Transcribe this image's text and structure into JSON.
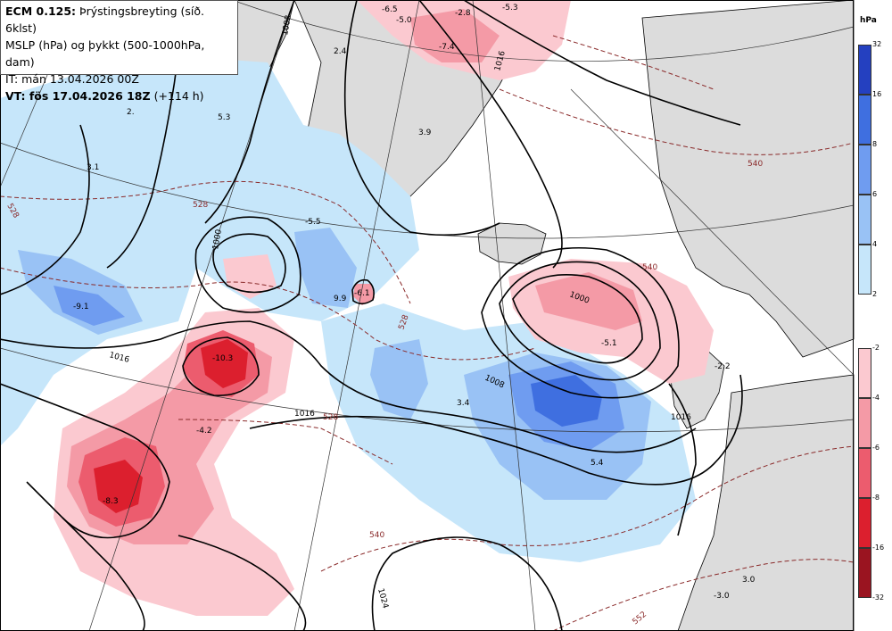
{
  "header": {
    "model": "ECM 0.125:",
    "product": "Þrýstingsbreyting (síð. 6klst)",
    "line2": "MSLP (hPa) og þykkt (500-1000hPa, dam)",
    "line3": "IT: mán 13.04.2026 00Z",
    "vt_label": "VT: fös 17.04.2026 18Z",
    "vt_lead": "(+114 h)"
  },
  "legend": {
    "unit": "hPa",
    "positive": [
      "32",
      "16",
      "8",
      "6",
      "4",
      "2"
    ],
    "negative": [
      "-2",
      "-4",
      "-6",
      "-8",
      "-16",
      "-32"
    ],
    "positive_colors": [
      "#2440c0",
      "#3f6fe0",
      "#6f9cf0",
      "#99c2f5",
      "#c6e6fa"
    ],
    "negative_colors": [
      "#fbc9d0",
      "#f49aa6",
      "#ec5c6e",
      "#dc1f2e",
      "#9a1420"
    ]
  },
  "map_labels": {
    "pressure_change": [
      "-6.5",
      "-5.0",
      "-2.8",
      "-5.3",
      "-7.4",
      "2.4",
      "2.",
      "5.3",
      "3.9",
      "3.1",
      "-5.5",
      "9.9",
      "-6.1",
      "-9.1",
      "-10.3",
      "-4.2",
      "-8.3",
      "3.4",
      "5.4",
      "-5.1",
      "-2.2",
      "3.0",
      "-3.0"
    ],
    "isobars": [
      "1008",
      "1000",
      "1000",
      "1008",
      "1016",
      "1016",
      "1016",
      "1024",
      "1016"
    ],
    "thickness": [
      "528",
      "528",
      "540",
      "540",
      "540",
      "528",
      "552",
      "528"
    ]
  }
}
